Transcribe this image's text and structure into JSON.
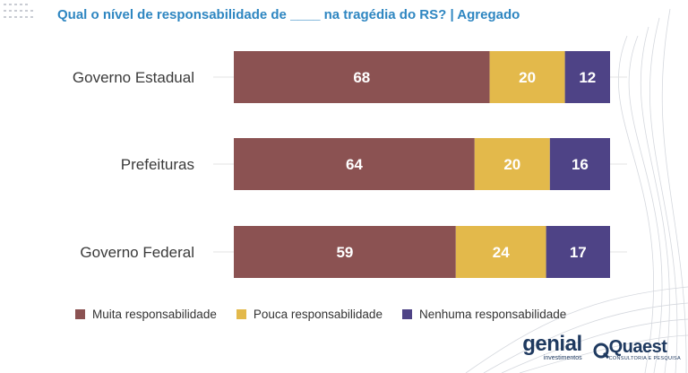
{
  "title": "Qual o nível de responsabilidade de ____ na tragédia do RS? | Agregado",
  "colors": {
    "title": "#2e86c1",
    "muita": "#8b5252",
    "pouca": "#e3b94b",
    "nenhuma": "#4e4386",
    "label_light": "#ffffff"
  },
  "chart_data": {
    "type": "bar",
    "orientation": "horizontal",
    "stacked": true,
    "categories": [
      "Governo Estadual",
      "Prefeituras",
      "Governo Federal"
    ],
    "series": [
      {
        "name": "Muita responsabilidade",
        "values": [
          68,
          64,
          59
        ]
      },
      {
        "name": "Pouca responsabilidade",
        "values": [
          20,
          20,
          24
        ]
      },
      {
        "name": "Nenhuma responsabilidade",
        "values": [
          12,
          16,
          17
        ]
      }
    ],
    "xlim": [
      0,
      100
    ],
    "data_labels": true,
    "legend": "bottom",
    "grid": false
  },
  "logos": {
    "genial": {
      "name": "genial",
      "sub": "investimentos"
    },
    "quaest": {
      "name": "Quaest",
      "sub": "CONSULTORIA E PESQUISA"
    }
  }
}
